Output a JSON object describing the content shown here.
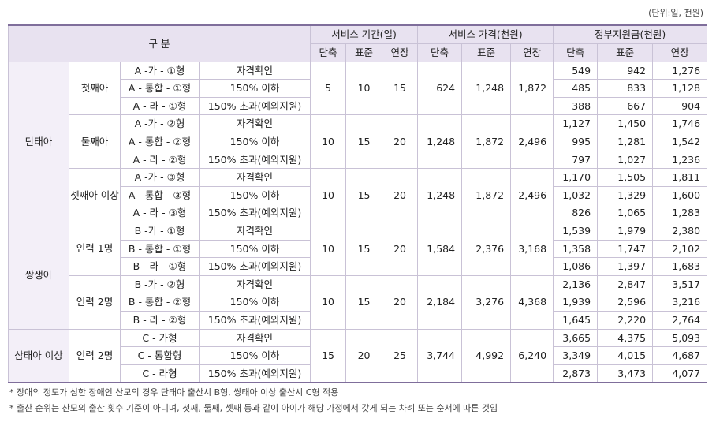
{
  "unit_note": "(단위:일, 천원)",
  "header": {
    "category": "구 분",
    "period": "서비스 기간(일)",
    "price": "서비스 가격(천원)",
    "subsidy": "정부지원금(천원)",
    "sub": [
      "단축",
      "표준",
      "연장",
      "단축",
      "표준",
      "연장",
      "단축",
      "표준",
      "연장"
    ]
  },
  "groups": [
    {
      "name": "단태아",
      "subgroups": [
        {
          "name": "첫째아",
          "period": [
            "5",
            "10",
            "15"
          ],
          "price": [
            "624",
            "1,248",
            "1,872"
          ],
          "rows": [
            {
              "type": "A -가 - ①형",
              "cond": "자격확인",
              "subsidy": [
                "549",
                "942",
                "1,276"
              ]
            },
            {
              "type": "A - 통합 - ①형",
              "cond": "150% 이하",
              "subsidy": [
                "485",
                "833",
                "1,128"
              ]
            },
            {
              "type": "A - 라 - ①형",
              "cond": "150% 초과(예외지원)",
              "subsidy": [
                "388",
                "667",
                "904"
              ]
            }
          ]
        },
        {
          "name": "둘째아",
          "period": [
            "10",
            "15",
            "20"
          ],
          "price": [
            "1,248",
            "1,872",
            "2,496"
          ],
          "rows": [
            {
              "type": "A -가 - ②형",
              "cond": "자격확인",
              "subsidy": [
                "1,127",
                "1,450",
                "1,746"
              ]
            },
            {
              "type": "A - 통합 - ②형",
              "cond": "150% 이하",
              "subsidy": [
                "995",
                "1,281",
                "1,542"
              ]
            },
            {
              "type": "A - 라 - ②형",
              "cond": "150% 초과(예외지원)",
              "subsidy": [
                "797",
                "1,027",
                "1,236"
              ]
            }
          ]
        },
        {
          "name": "셋째아 이상",
          "period": [
            "10",
            "15",
            "20"
          ],
          "price": [
            "1,248",
            "1,872",
            "2,496"
          ],
          "rows": [
            {
              "type": "A -가 - ③형",
              "cond": "자격확인",
              "subsidy": [
                "1,170",
                "1,505",
                "1,811"
              ]
            },
            {
              "type": "A - 통합 - ③형",
              "cond": "150% 이하",
              "subsidy": [
                "1,032",
                "1,329",
                "1,600"
              ]
            },
            {
              "type": "A - 라 - ③형",
              "cond": "150% 초과(예외지원)",
              "subsidy": [
                "826",
                "1,065",
                "1,283"
              ]
            }
          ]
        }
      ]
    },
    {
      "name": "쌍생아",
      "subgroups": [
        {
          "name": "인력 1명",
          "period": [
            "10",
            "15",
            "20"
          ],
          "price": [
            "1,584",
            "2,376",
            "3,168"
          ],
          "rows": [
            {
              "type": "B -가 - ①형",
              "cond": "자격확인",
              "subsidy": [
                "1,539",
                "1,979",
                "2,380"
              ]
            },
            {
              "type": "B - 통합 - ①형",
              "cond": "150% 이하",
              "subsidy": [
                "1,358",
                "1,747",
                "2,102"
              ]
            },
            {
              "type": "B - 라 - ①형",
              "cond": "150% 초과(예외지원)",
              "subsidy": [
                "1,086",
                "1,397",
                "1,683"
              ]
            }
          ]
        },
        {
          "name": "인력 2명",
          "period": [
            "10",
            "15",
            "20"
          ],
          "price": [
            "2,184",
            "3,276",
            "4,368"
          ],
          "rows": [
            {
              "type": "B -가 - ②형",
              "cond": "자격확인",
              "subsidy": [
                "2,136",
                "2,847",
                "3,517"
              ]
            },
            {
              "type": "B - 통합 - ②형",
              "cond": "150% 이하",
              "subsidy": [
                "1,939",
                "2,596",
                "3,216"
              ]
            },
            {
              "type": "B - 라 - ②형",
              "cond": "150% 초과(예외지원)",
              "subsidy": [
                "1,645",
                "2,220",
                "2,764"
              ]
            }
          ]
        }
      ]
    },
    {
      "name": "삼태아 이상",
      "subgroups": [
        {
          "name": "인력 2명",
          "period": [
            "15",
            "20",
            "25"
          ],
          "price": [
            "3,744",
            "4,992",
            "6,240"
          ],
          "rows": [
            {
              "type": "C - 가형",
              "cond": "자격확인",
              "subsidy": [
                "3,665",
                "4,375",
                "5,093"
              ]
            },
            {
              "type": "C - 통합형",
              "cond": "150% 이하",
              "subsidy": [
                "3,349",
                "4,015",
                "4,687"
              ]
            },
            {
              "type": "C - 라형",
              "cond": "150% 초과(예외지원)",
              "subsidy": [
                "2,873",
                "3,473",
                "4,077"
              ]
            }
          ]
        }
      ]
    }
  ],
  "notes": [
    "* 장애의 정도가 심한 장애인 산모의 경우 단태아 출산시 B형, 쌍태아 이상 출산시 C형 적용",
    "* 출산 순위는 산모의 출산 횟수 기준이 아니며, 첫째, 둘째, 셋째 등과 같이 아이가 해당 가정에서 갖게 되는 차례 또는 순서에 따른 것임"
  ]
}
